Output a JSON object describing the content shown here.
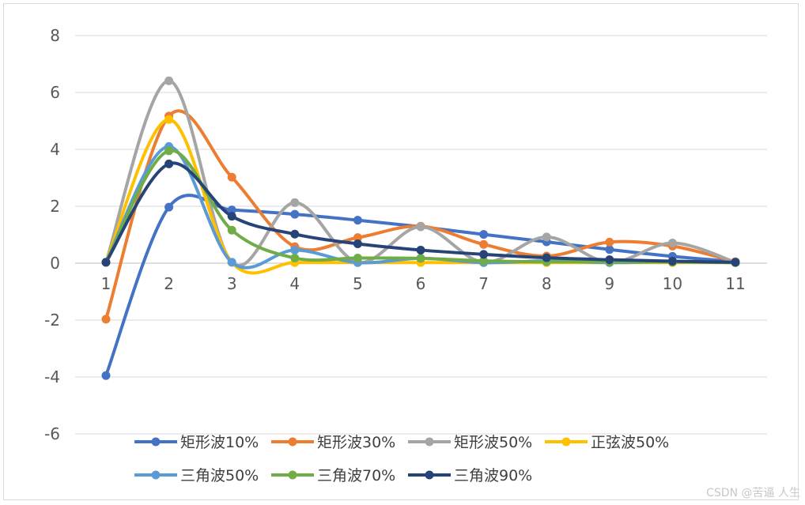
{
  "chart_data": {
    "type": "line",
    "title": "",
    "xlabel": "",
    "ylabel": "",
    "x": [
      1,
      2,
      3,
      4,
      5,
      6,
      7,
      8,
      9,
      10,
      11
    ],
    "ylim": [
      -6,
      8
    ],
    "yticks": [
      -6,
      -4,
      -2,
      0,
      2,
      4,
      6,
      8
    ],
    "grid": true,
    "smooth": true,
    "legend_position": "bottom",
    "series": [
      {
        "name": "矩形波10%",
        "color": "#4472c4",
        "values": [
          -3.95,
          1.97,
          1.87,
          1.72,
          1.51,
          1.28,
          1.01,
          0.75,
          0.48,
          0.24,
          0.05
        ]
      },
      {
        "name": "矩形波30%",
        "color": "#ed7d31",
        "values": [
          -1.97,
          5.17,
          3.02,
          0.58,
          0.9,
          1.3,
          0.66,
          0.25,
          0.74,
          0.6,
          0.05
        ]
      },
      {
        "name": "矩形波50%",
        "color": "#a5a5a5",
        "values": [
          0.03,
          6.41,
          0.03,
          2.13,
          0.03,
          1.28,
          0.03,
          0.92,
          0.03,
          0.71,
          0.03
        ]
      },
      {
        "name": "正弦波50%",
        "color": "#ffc000",
        "values": [
          0.03,
          5.05,
          0.03,
          0.02,
          0.02,
          0.02,
          0.02,
          0.02,
          0.02,
          0.02,
          0.02
        ]
      },
      {
        "name": "三角波50%",
        "color": "#5b9bd5",
        "values": [
          0.03,
          4.1,
          0.03,
          0.46,
          0.02,
          0.17,
          0.02,
          0.08,
          0.02,
          0.05,
          0.02
        ]
      },
      {
        "name": "三角波70%",
        "color": "#70ad47",
        "values": [
          0.03,
          3.95,
          1.16,
          0.18,
          0.18,
          0.17,
          0.08,
          0.05,
          0.05,
          0.04,
          0.02
        ]
      },
      {
        "name": "三角波90%",
        "color": "#264478",
        "values": [
          0.03,
          3.49,
          1.65,
          1.02,
          0.68,
          0.46,
          0.31,
          0.19,
          0.12,
          0.07,
          0.03
        ]
      }
    ]
  },
  "watermark": "CSDN @苦逼 人生"
}
